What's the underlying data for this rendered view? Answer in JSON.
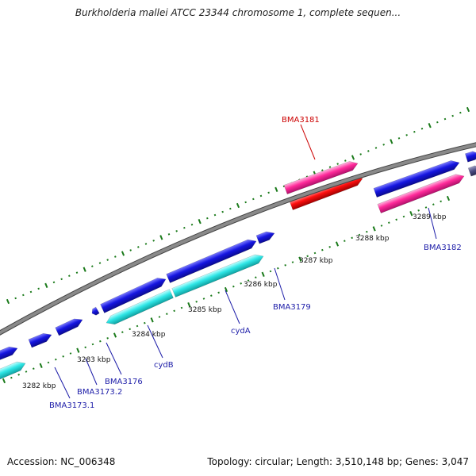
{
  "title": "Burkholderia mallei ATCC 23344 chromosome 1, complete sequen...",
  "accession": "Accession: NC_006348",
  "topology": "Topology: circular; Length: 3,510,148 bp; Genes: 3,047",
  "colors": {
    "backbone": "#8a8a8a",
    "tick": "#1a7a1a",
    "gene_cds_forward": "#1515e0",
    "gene_cds_reverse": "#2ee6e6",
    "gene_highlight_pink": "#ff2a9a",
    "gene_highlight_red": "#ff1010",
    "label_blue": "#1c1ca8",
    "label_red": "#cc0000"
  },
  "scale_labels": [
    "3282 kbp",
    "3283 kbp",
    "3284 kbp",
    "3285 kbp",
    "3286 kbp",
    "3287 kbp",
    "3288 kbp",
    "3289 kbp"
  ],
  "gene_labels": [
    {
      "name": "BMA3181",
      "color": "red"
    },
    {
      "name": "BMA3182",
      "color": "blue"
    },
    {
      "name": "BMA3179",
      "color": "blue"
    },
    {
      "name": "cydA",
      "color": "blue"
    },
    {
      "name": "cydB",
      "color": "blue"
    },
    {
      "name": "BMA3176",
      "color": "blue"
    },
    {
      "name": "BMA3173.2",
      "color": "blue"
    },
    {
      "name": "BMA3173.1",
      "color": "blue"
    }
  ]
}
